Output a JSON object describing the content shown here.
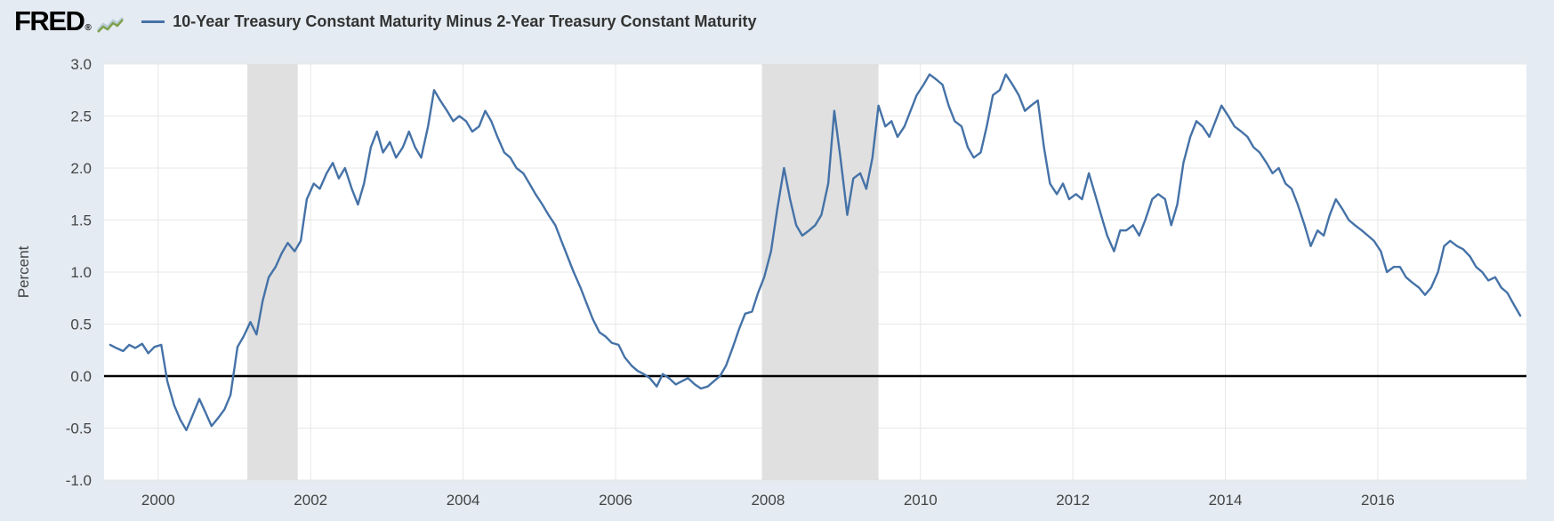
{
  "header": {
    "logo_text": "FRED",
    "reg_mark": "®",
    "legend_label": "10-Year Treasury Constant Maturity Minus 2-Year Treasury Constant Maturity"
  },
  "colors": {
    "page_bg": "#e4ebf2",
    "plot_bg": "#ffffff",
    "gridline": "#e7e7e7",
    "recession_band": "#e0e0e0",
    "zero_line": "#000000",
    "series": "#4572a7",
    "axis_text": "#444444",
    "title_text": "#333333",
    "logo_spark_1": "#7fa14f",
    "logo_spark_2": "#b9cdd9"
  },
  "chart_data": {
    "type": "line",
    "title": "10-Year Treasury Constant Maturity Minus 2-Year Treasury Constant Maturity",
    "xlabel": "",
    "ylabel": "Percent",
    "xlim": [
      1999.29,
      2017.95
    ],
    "ylim": [
      -1.0,
      3.0
    ],
    "x_ticks": [
      2000,
      2002,
      2004,
      2006,
      2008,
      2010,
      2012,
      2014,
      2016
    ],
    "x_tick_labels": [
      "2000",
      "2002",
      "2004",
      "2006",
      "2008",
      "2010",
      "2012",
      "2014",
      "2016"
    ],
    "y_ticks": [
      3.0,
      2.5,
      2.0,
      1.5,
      1.0,
      0.5,
      0.0,
      -0.5,
      -1.0
    ],
    "y_tick_labels": [
      "3.0",
      "2.5",
      "2.0",
      "1.5",
      "1.0",
      "0.5",
      "0.0",
      "-0.5",
      "-1.0"
    ],
    "grid": true,
    "zero_line": true,
    "legend_position": "top-header",
    "recession_bands": [
      [
        2001.17,
        2001.83
      ],
      [
        2007.92,
        2009.45
      ]
    ],
    "series": [
      {
        "name": "10-Year Treasury Constant Maturity Minus 2-Year Treasury Constant Maturity",
        "color": "#4572a7",
        "unit": "Percent",
        "points": [
          [
            1999.37,
            0.3
          ],
          [
            1999.45,
            0.27
          ],
          [
            1999.54,
            0.24
          ],
          [
            1999.62,
            0.3
          ],
          [
            1999.7,
            0.27
          ],
          [
            1999.79,
            0.31
          ],
          [
            1999.87,
            0.22
          ],
          [
            1999.95,
            0.28
          ],
          [
            2000.04,
            0.3
          ],
          [
            2000.12,
            -0.05
          ],
          [
            2000.21,
            -0.28
          ],
          [
            2000.29,
            -0.42
          ],
          [
            2000.37,
            -0.52
          ],
          [
            2000.45,
            -0.38
          ],
          [
            2000.54,
            -0.22
          ],
          [
            2000.62,
            -0.35
          ],
          [
            2000.7,
            -0.48
          ],
          [
            2000.79,
            -0.4
          ],
          [
            2000.87,
            -0.32
          ],
          [
            2000.95,
            -0.18
          ],
          [
            2001.04,
            0.28
          ],
          [
            2001.12,
            0.38
          ],
          [
            2001.21,
            0.52
          ],
          [
            2001.29,
            0.4
          ],
          [
            2001.37,
            0.72
          ],
          [
            2001.45,
            0.95
          ],
          [
            2001.54,
            1.05
          ],
          [
            2001.62,
            1.18
          ],
          [
            2001.7,
            1.28
          ],
          [
            2001.79,
            1.2
          ],
          [
            2001.87,
            1.3
          ],
          [
            2001.95,
            1.7
          ],
          [
            2002.04,
            1.85
          ],
          [
            2002.12,
            1.8
          ],
          [
            2002.21,
            1.95
          ],
          [
            2002.29,
            2.05
          ],
          [
            2002.37,
            1.9
          ],
          [
            2002.45,
            2.0
          ],
          [
            2002.54,
            1.8
          ],
          [
            2002.62,
            1.65
          ],
          [
            2002.7,
            1.85
          ],
          [
            2002.79,
            2.2
          ],
          [
            2002.87,
            2.35
          ],
          [
            2002.95,
            2.15
          ],
          [
            2003.04,
            2.25
          ],
          [
            2003.12,
            2.1
          ],
          [
            2003.21,
            2.2
          ],
          [
            2003.29,
            2.35
          ],
          [
            2003.37,
            2.2
          ],
          [
            2003.45,
            2.1
          ],
          [
            2003.54,
            2.4
          ],
          [
            2003.62,
            2.75
          ],
          [
            2003.7,
            2.65
          ],
          [
            2003.79,
            2.55
          ],
          [
            2003.87,
            2.45
          ],
          [
            2003.95,
            2.5
          ],
          [
            2004.04,
            2.45
          ],
          [
            2004.12,
            2.35
          ],
          [
            2004.21,
            2.4
          ],
          [
            2004.29,
            2.55
          ],
          [
            2004.37,
            2.45
          ],
          [
            2004.45,
            2.3
          ],
          [
            2004.54,
            2.15
          ],
          [
            2004.62,
            2.1
          ],
          [
            2004.7,
            2.0
          ],
          [
            2004.79,
            1.95
          ],
          [
            2004.87,
            1.85
          ],
          [
            2004.95,
            1.75
          ],
          [
            2005.04,
            1.65
          ],
          [
            2005.12,
            1.55
          ],
          [
            2005.21,
            1.45
          ],
          [
            2005.29,
            1.3
          ],
          [
            2005.37,
            1.15
          ],
          [
            2005.45,
            1.0
          ],
          [
            2005.54,
            0.85
          ],
          [
            2005.62,
            0.7
          ],
          [
            2005.7,
            0.55
          ],
          [
            2005.79,
            0.42
          ],
          [
            2005.87,
            0.38
          ],
          [
            2005.95,
            0.32
          ],
          [
            2006.04,
            0.3
          ],
          [
            2006.12,
            0.18
          ],
          [
            2006.21,
            0.1
          ],
          [
            2006.29,
            0.05
          ],
          [
            2006.37,
            0.02
          ],
          [
            2006.45,
            -0.02
          ],
          [
            2006.54,
            -0.1
          ],
          [
            2006.62,
            0.02
          ],
          [
            2006.7,
            -0.02
          ],
          [
            2006.79,
            -0.08
          ],
          [
            2006.87,
            -0.05
          ],
          [
            2006.95,
            -0.02
          ],
          [
            2007.04,
            -0.08
          ],
          [
            2007.12,
            -0.12
          ],
          [
            2007.21,
            -0.1
          ],
          [
            2007.29,
            -0.05
          ],
          [
            2007.37,
            0.0
          ],
          [
            2007.45,
            0.1
          ],
          [
            2007.54,
            0.28
          ],
          [
            2007.62,
            0.45
          ],
          [
            2007.7,
            0.6
          ],
          [
            2007.79,
            0.62
          ],
          [
            2007.87,
            0.8
          ],
          [
            2007.95,
            0.95
          ],
          [
            2008.04,
            1.2
          ],
          [
            2008.12,
            1.6
          ],
          [
            2008.21,
            2.0
          ],
          [
            2008.29,
            1.7
          ],
          [
            2008.37,
            1.45
          ],
          [
            2008.45,
            1.35
          ],
          [
            2008.54,
            1.4
          ],
          [
            2008.62,
            1.45
          ],
          [
            2008.7,
            1.55
          ],
          [
            2008.79,
            1.85
          ],
          [
            2008.87,
            2.55
          ],
          [
            2008.95,
            2.1
          ],
          [
            2009.04,
            1.55
          ],
          [
            2009.12,
            1.9
          ],
          [
            2009.21,
            1.95
          ],
          [
            2009.29,
            1.8
          ],
          [
            2009.37,
            2.1
          ],
          [
            2009.45,
            2.6
          ],
          [
            2009.54,
            2.4
          ],
          [
            2009.62,
            2.45
          ],
          [
            2009.7,
            2.3
          ],
          [
            2009.79,
            2.4
          ],
          [
            2009.87,
            2.55
          ],
          [
            2009.95,
            2.7
          ],
          [
            2010.04,
            2.8
          ],
          [
            2010.12,
            2.9
          ],
          [
            2010.21,
            2.85
          ],
          [
            2010.29,
            2.8
          ],
          [
            2010.37,
            2.6
          ],
          [
            2010.45,
            2.45
          ],
          [
            2010.54,
            2.4
          ],
          [
            2010.62,
            2.2
          ],
          [
            2010.7,
            2.1
          ],
          [
            2010.79,
            2.15
          ],
          [
            2010.87,
            2.4
          ],
          [
            2010.95,
            2.7
          ],
          [
            2011.04,
            2.75
          ],
          [
            2011.12,
            2.9
          ],
          [
            2011.21,
            2.8
          ],
          [
            2011.29,
            2.7
          ],
          [
            2011.37,
            2.55
          ],
          [
            2011.45,
            2.6
          ],
          [
            2011.54,
            2.65
          ],
          [
            2011.62,
            2.2
          ],
          [
            2011.7,
            1.85
          ],
          [
            2011.79,
            1.75
          ],
          [
            2011.87,
            1.85
          ],
          [
            2011.95,
            1.7
          ],
          [
            2012.04,
            1.75
          ],
          [
            2012.12,
            1.7
          ],
          [
            2012.21,
            1.95
          ],
          [
            2012.29,
            1.75
          ],
          [
            2012.37,
            1.55
          ],
          [
            2012.45,
            1.35
          ],
          [
            2012.54,
            1.2
          ],
          [
            2012.62,
            1.4
          ],
          [
            2012.7,
            1.4
          ],
          [
            2012.79,
            1.45
          ],
          [
            2012.87,
            1.35
          ],
          [
            2012.95,
            1.5
          ],
          [
            2013.04,
            1.7
          ],
          [
            2013.12,
            1.75
          ],
          [
            2013.21,
            1.7
          ],
          [
            2013.29,
            1.45
          ],
          [
            2013.37,
            1.65
          ],
          [
            2013.45,
            2.05
          ],
          [
            2013.54,
            2.3
          ],
          [
            2013.62,
            2.45
          ],
          [
            2013.7,
            2.4
          ],
          [
            2013.79,
            2.3
          ],
          [
            2013.87,
            2.45
          ],
          [
            2013.95,
            2.6
          ],
          [
            2014.04,
            2.5
          ],
          [
            2014.12,
            2.4
          ],
          [
            2014.21,
            2.35
          ],
          [
            2014.29,
            2.3
          ],
          [
            2014.37,
            2.2
          ],
          [
            2014.45,
            2.15
          ],
          [
            2014.54,
            2.05
          ],
          [
            2014.62,
            1.95
          ],
          [
            2014.7,
            2.0
          ],
          [
            2014.79,
            1.85
          ],
          [
            2014.87,
            1.8
          ],
          [
            2014.95,
            1.65
          ],
          [
            2015.04,
            1.45
          ],
          [
            2015.12,
            1.25
          ],
          [
            2015.21,
            1.4
          ],
          [
            2015.29,
            1.35
          ],
          [
            2015.37,
            1.55
          ],
          [
            2015.45,
            1.7
          ],
          [
            2015.54,
            1.6
          ],
          [
            2015.62,
            1.5
          ],
          [
            2015.7,
            1.45
          ],
          [
            2015.79,
            1.4
          ],
          [
            2015.87,
            1.35
          ],
          [
            2015.95,
            1.3
          ],
          [
            2016.04,
            1.2
          ],
          [
            2016.12,
            1.0
          ],
          [
            2016.21,
            1.05
          ],
          [
            2016.29,
            1.05
          ],
          [
            2016.37,
            0.95
          ],
          [
            2016.45,
            0.9
          ],
          [
            2016.54,
            0.85
          ],
          [
            2016.62,
            0.78
          ],
          [
            2016.7,
            0.85
          ],
          [
            2016.79,
            1.0
          ],
          [
            2016.87,
            1.25
          ],
          [
            2016.95,
            1.3
          ],
          [
            2017.04,
            1.25
          ],
          [
            2017.12,
            1.22
          ],
          [
            2017.21,
            1.15
          ],
          [
            2017.29,
            1.05
          ],
          [
            2017.37,
            1.0
          ],
          [
            2017.45,
            0.92
          ],
          [
            2017.54,
            0.95
          ],
          [
            2017.62,
            0.85
          ],
          [
            2017.7,
            0.8
          ],
          [
            2017.79,
            0.68
          ],
          [
            2017.87,
            0.58
          ]
        ]
      }
    ]
  }
}
